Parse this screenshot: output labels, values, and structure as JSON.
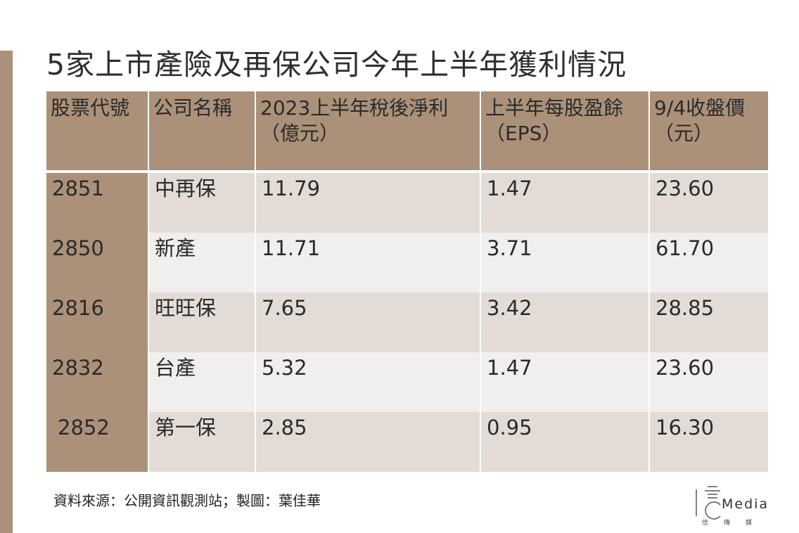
{
  "title": "5家上市產險及再保公司今年上半年獲利情況",
  "table": {
    "headers": [
      {
        "line1": "股票代號",
        "line2": ""
      },
      {
        "line1": "公司名稱",
        "line2": ""
      },
      {
        "line1": "2023上半年稅後淨利",
        "line2": "（億元）"
      },
      {
        "line1": "上半年每股盈餘",
        "line2": "（EPS）"
      },
      {
        "line1": "9/4收盤價",
        "line2": "（元）"
      }
    ],
    "rows": [
      {
        "code": "2851",
        "name": "中再保",
        "profit": "11.79",
        "eps": "1.47",
        "price": "23.60"
      },
      {
        "code": "2850",
        "name": "新產",
        "profit": "11.71",
        "eps": "3.71",
        "price": "61.70"
      },
      {
        "code": "2816",
        "name": "旺旺保",
        "profit": "7.65",
        "eps": "3.42",
        "price": "28.85"
      },
      {
        "code": "2832",
        "name": "台產",
        "profit": "5.32",
        "eps": "1.47",
        "price": "23.60"
      },
      {
        "code": "2852",
        "name": "第一保",
        "profit": "2.85",
        "eps": "0.95",
        "price": "16.30"
      }
    ]
  },
  "footer": {
    "source": "資料來源：公開資訊觀測站；製圖：葉佳華"
  },
  "logo": {
    "text": "Media",
    "subtext": "信傳媒"
  },
  "colors": {
    "accent_brown": "#ab9179",
    "row_light_tan": "#e3dcd6",
    "row_light_gray": "#f0efee"
  }
}
